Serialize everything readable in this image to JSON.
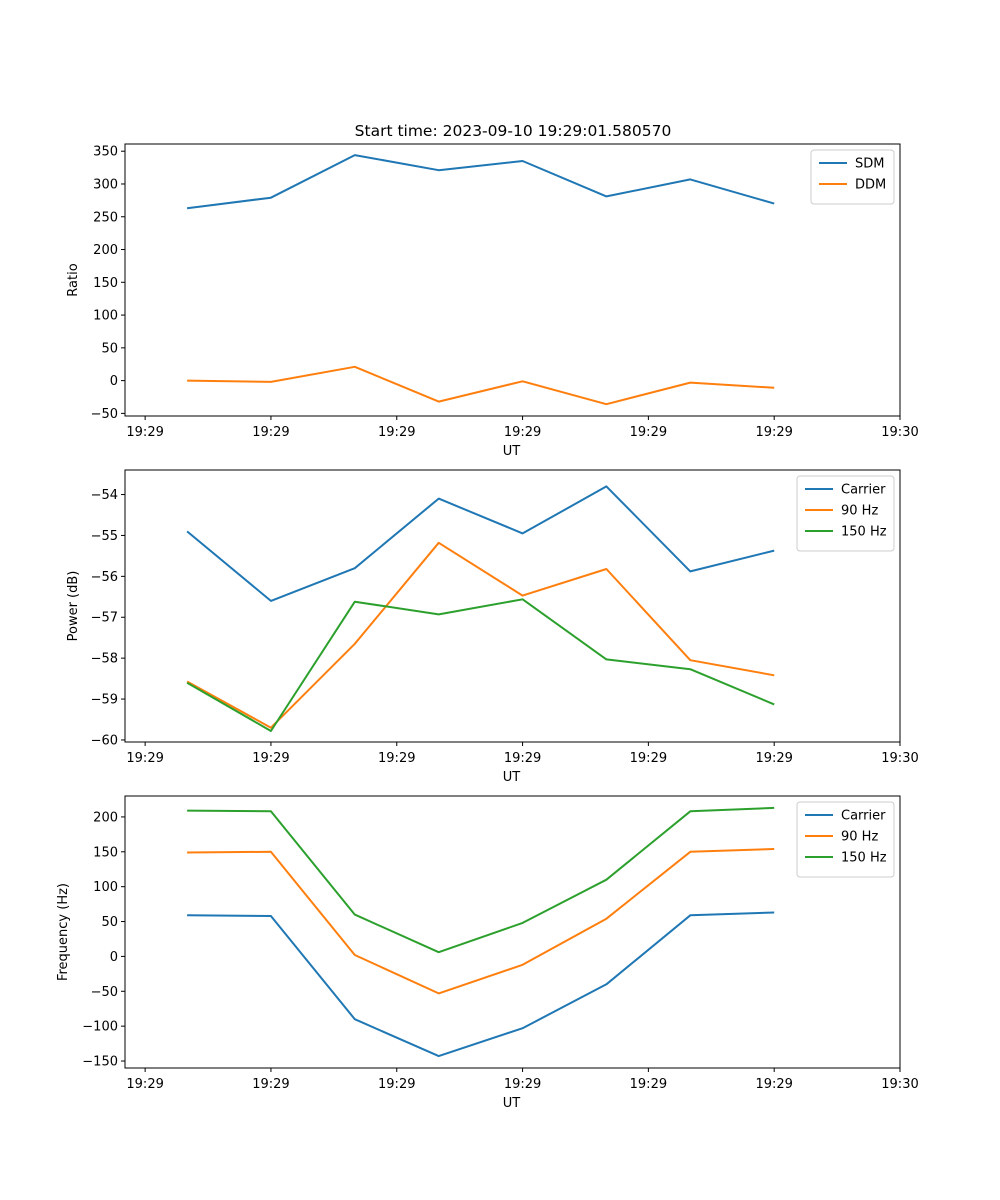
{
  "figure_title": "Start time: 2023-09-10 19:29:01.580570",
  "chart_data": [
    {
      "type": "line",
      "title": "Start time: 2023-09-10 19:29:01.580570",
      "xlabel": "UT",
      "ylabel": "Ratio",
      "x": [
        1,
        2,
        3,
        4,
        5,
        6,
        7,
        8
      ],
      "xlim": [
        0.26,
        9.5
      ],
      "xticks": [
        0.5,
        2.0,
        3.5,
        5.0,
        6.5,
        8.0,
        9.5
      ],
      "xtick_labels": [
        "19:29",
        "19:29",
        "19:29",
        "19:29",
        "19:29",
        "19:29",
        "19:30"
      ],
      "ylim": [
        -54,
        361
      ],
      "yticks": [
        -50,
        0,
        50,
        100,
        150,
        200,
        250,
        300,
        350
      ],
      "legend": "top-right",
      "series": [
        {
          "name": "SDM",
          "color": "#1f77b4",
          "values": [
            263,
            279,
            344,
            321,
            335,
            281,
            307,
            270
          ]
        },
        {
          "name": "DDM",
          "color": "#ff7f0e",
          "values": [
            0,
            -2,
            21,
            -32,
            -1,
            -36,
            -3,
            -11
          ]
        }
      ]
    },
    {
      "type": "line",
      "title": "",
      "xlabel": "UT",
      "ylabel": "Power (dB)",
      "x": [
        1,
        2,
        3,
        4,
        5,
        6,
        7,
        8
      ],
      "xlim": [
        0.26,
        9.5
      ],
      "xticks": [
        0.5,
        2.0,
        3.5,
        5.0,
        6.5,
        8.0,
        9.5
      ],
      "xtick_labels": [
        "19:29",
        "19:29",
        "19:29",
        "19:29",
        "19:29",
        "19:29",
        "19:30"
      ],
      "ylim": [
        -60.05,
        -53.4
      ],
      "yticks": [
        -60,
        -59,
        -58,
        -57,
        -56,
        -55,
        -54
      ],
      "legend": "top-right",
      "series": [
        {
          "name": "Carrier",
          "color": "#1f77b4",
          "values": [
            -54.9,
            -56.6,
            -55.8,
            -54.1,
            -54.95,
            -53.8,
            -55.88,
            -55.37
          ]
        },
        {
          "name": "90 Hz",
          "color": "#ff7f0e",
          "values": [
            -58.57,
            -59.7,
            -57.65,
            -55.18,
            -56.47,
            -55.82,
            -58.05,
            -58.42
          ]
        },
        {
          "name": "150 Hz",
          "color": "#2ca02c",
          "values": [
            -58.6,
            -59.78,
            -56.62,
            -56.93,
            -56.56,
            -58.03,
            -58.27,
            -59.13
          ]
        }
      ]
    },
    {
      "type": "line",
      "title": "",
      "xlabel": "UT",
      "ylabel": "Frequency (Hz)",
      "x": [
        1,
        2,
        3,
        4,
        5,
        6,
        7,
        8
      ],
      "xlim": [
        0.26,
        9.5
      ],
      "xticks": [
        0.5,
        2.0,
        3.5,
        5.0,
        6.5,
        8.0,
        9.5
      ],
      "xtick_labels": [
        "19:29",
        "19:29",
        "19:29",
        "19:29",
        "19:29",
        "19:29",
        "19:30"
      ],
      "ylim": [
        -160,
        230
      ],
      "yticks": [
        -150,
        -100,
        -50,
        0,
        50,
        100,
        150,
        200
      ],
      "legend": "top-right",
      "series": [
        {
          "name": "Carrier",
          "color": "#1f77b4",
          "values": [
            59,
            58,
            -90,
            -143,
            -103,
            -40,
            59,
            63
          ]
        },
        {
          "name": "90 Hz",
          "color": "#ff7f0e",
          "values": [
            149,
            150,
            2,
            -53,
            -12,
            54,
            150,
            154
          ]
        },
        {
          "name": "150 Hz",
          "color": "#2ca02c",
          "values": [
            209,
            208,
            60,
            6,
            48,
            110,
            208,
            213
          ]
        }
      ]
    }
  ]
}
